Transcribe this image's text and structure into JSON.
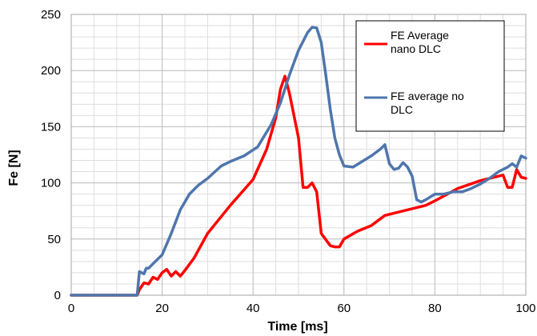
{
  "chart_data": {
    "type": "line",
    "xlabel": "Time [ms]",
    "ylabel": "Fe [N]",
    "xlim": [
      0,
      100
    ],
    "ylim": [
      0,
      250
    ],
    "xticks": [
      0,
      20,
      40,
      60,
      80,
      100
    ],
    "yticks": [
      0,
      50,
      100,
      150,
      200,
      250
    ],
    "x_minor_step": 5,
    "y_minor_step": 10,
    "grid": true,
    "legend_position": "top-right",
    "series": [
      {
        "name": "FE Average nano DLC",
        "color": "#ff0000",
        "points": [
          [
            0,
            0
          ],
          [
            14.5,
            0
          ],
          [
            15,
            5
          ],
          [
            16,
            11
          ],
          [
            17,
            10
          ],
          [
            18,
            16
          ],
          [
            19,
            14
          ],
          [
            20,
            20
          ],
          [
            21,
            23
          ],
          [
            22,
            17
          ],
          [
            23,
            21
          ],
          [
            24,
            17
          ],
          [
            25,
            22
          ],
          [
            27,
            33
          ],
          [
            30,
            55
          ],
          [
            35,
            80
          ],
          [
            40,
            103
          ],
          [
            43,
            130
          ],
          [
            45,
            158
          ],
          [
            46,
            183
          ],
          [
            47,
            195
          ],
          [
            48,
            180
          ],
          [
            50,
            140
          ],
          [
            51,
            96
          ],
          [
            52,
            96
          ],
          [
            53,
            100
          ],
          [
            54,
            92
          ],
          [
            55,
            55
          ],
          [
            57,
            44
          ],
          [
            58,
            43
          ],
          [
            59,
            43
          ],
          [
            60,
            50
          ],
          [
            63,
            57
          ],
          [
            66,
            62
          ],
          [
            69,
            71
          ],
          [
            73,
            75
          ],
          [
            78,
            80
          ],
          [
            80,
            84
          ],
          [
            85,
            95
          ],
          [
            90,
            102
          ],
          [
            95,
            107
          ],
          [
            96,
            96
          ],
          [
            97,
            96
          ],
          [
            98,
            112
          ],
          [
            99,
            105
          ],
          [
            100,
            104
          ]
        ]
      },
      {
        "name": "FE average no DLC",
        "color": "#4f76ac",
        "points": [
          [
            0,
            0
          ],
          [
            14.5,
            0
          ],
          [
            15,
            21
          ],
          [
            16,
            19
          ],
          [
            16.5,
            24
          ],
          [
            17,
            24
          ],
          [
            18,
            28
          ],
          [
            20,
            36
          ],
          [
            22,
            55
          ],
          [
            24,
            76
          ],
          [
            26,
            90
          ],
          [
            28,
            98
          ],
          [
            30,
            104
          ],
          [
            33,
            115
          ],
          [
            35,
            119
          ],
          [
            38,
            124
          ],
          [
            41,
            132
          ],
          [
            44,
            152
          ],
          [
            46,
            171
          ],
          [
            48,
            196
          ],
          [
            50,
            218
          ],
          [
            52,
            234
          ],
          [
            53,
            238.5
          ],
          [
            54,
            238
          ],
          [
            55,
            225
          ],
          [
            56,
            196
          ],
          [
            57,
            165
          ],
          [
            58,
            140
          ],
          [
            59,
            125
          ],
          [
            60,
            115
          ],
          [
            62,
            114
          ],
          [
            64,
            119
          ],
          [
            66,
            124
          ],
          [
            68,
            130
          ],
          [
            69,
            134
          ],
          [
            70,
            117
          ],
          [
            71,
            112
          ],
          [
            72,
            113
          ],
          [
            73,
            118
          ],
          [
            74,
            114
          ],
          [
            75,
            106
          ],
          [
            76,
            85
          ],
          [
            77,
            83
          ],
          [
            78,
            85
          ],
          [
            80,
            90
          ],
          [
            82,
            90
          ],
          [
            84,
            92
          ],
          [
            86,
            92
          ],
          [
            88,
            95
          ],
          [
            90,
            99
          ],
          [
            92,
            104
          ],
          [
            94,
            110
          ],
          [
            96,
            114
          ],
          [
            97,
            117
          ],
          [
            98,
            114
          ],
          [
            99,
            124
          ],
          [
            100,
            122
          ]
        ]
      }
    ],
    "legend_entries": [
      "FE Average\nnano DLC",
      "FE average no\nDLC"
    ]
  }
}
